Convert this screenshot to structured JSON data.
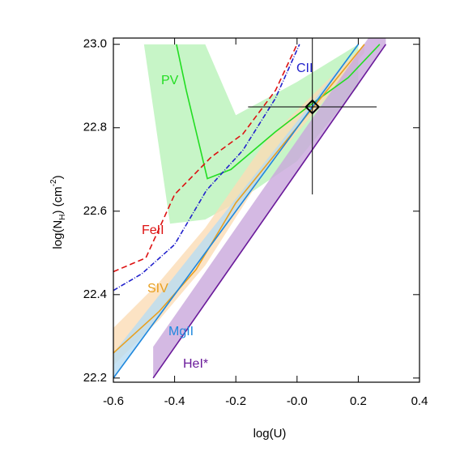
{
  "chart_data": {
    "type": "line",
    "x_label": "log(U)",
    "y_label": [
      "log(N",
      "H",
      ") (cm",
      "-2",
      ")"
    ],
    "xlim": [
      -0.6,
      0.4
    ],
    "ylim": [
      22.19,
      23.015
    ],
    "xticks": [
      -0.6,
      -0.4,
      -0.2,
      {
        "value": 0,
        "label": "-0.0"
      },
      0.2,
      0.4
    ],
    "yticks": [
      22.2,
      22.4,
      22.6,
      22.8,
      {
        "value": 23,
        "label": "23.0"
      }
    ],
    "series": [
      {
        "name": "PV",
        "color": "#22dd22",
        "x": [
          -0.394,
          -0.362,
          -0.293,
          -0.216,
          -0.071,
          0.035,
          0.167,
          0.27
        ],
        "values": [
          23.0,
          22.89,
          22.678,
          22.7,
          22.79,
          22.85,
          22.92,
          23.0
        ],
        "band": {
          "color": "#b9f2b9",
          "x": [
            -0.5,
            -0.415,
            -0.3,
            -0.2,
            0.0,
            0.2
          ],
          "low": [
            23.0,
            22.57,
            22.58,
            22.62,
            22.72,
            22.9
          ],
          "high": [
            23.0,
            23.0,
            23.0,
            22.83,
            22.91,
            23.0
          ]
        }
      },
      {
        "name": "CII",
        "color": "#2222cc",
        "dash": "6,2,1,2",
        "x": [
          -0.6,
          -0.507,
          -0.4,
          -0.296,
          -0.177,
          -0.071,
          0.008
        ],
        "values": [
          22.41,
          22.45,
          22.52,
          22.65,
          22.746,
          22.87,
          23.0
        ]
      },
      {
        "name": "FeII",
        "color": "#dd1111",
        "dash": "7,4",
        "x": [
          -0.6,
          -0.494,
          -0.4,
          -0.28,
          -0.177,
          -0.07,
          0.0
        ],
        "values": [
          22.455,
          22.488,
          22.64,
          22.73,
          22.785,
          22.89,
          23.0
        ]
      },
      {
        "name": "SIV",
        "color": "#e8a020",
        "x": [
          -0.6,
          -0.45,
          -0.33,
          -0.2,
          0.22
        ],
        "values": [
          22.26,
          22.36,
          22.46,
          22.62,
          23.0
        ],
        "band": {
          "color": "#fbdcb5",
          "x": [
            -0.6,
            -0.45,
            -0.3,
            -0.1,
            0.22
          ],
          "low": [
            22.23,
            22.34,
            22.47,
            22.7,
            22.98
          ],
          "high": [
            22.32,
            22.43,
            22.56,
            22.77,
            23.0
          ]
        }
      },
      {
        "name": "MgII",
        "color": "#1f88dd",
        "x": [
          -0.6,
          0.2
        ],
        "values": [
          22.2,
          23.0
        ],
        "band": {
          "color": "#b8dcf3",
          "x": [
            -0.6,
            0.2
          ],
          "low": [
            22.2,
            23.0
          ],
          "high": [
            22.26,
            23.0
          ]
        }
      },
      {
        "name": "HeI*",
        "color": "#6a1a9a",
        "x": [
          -0.47,
          0.29
        ],
        "values": [
          22.2,
          23.0
        ],
        "band": {
          "color": "#c9a8dc",
          "x": [
            -0.47,
            0.29
          ],
          "low": [
            22.2,
            23.0
          ],
          "high": [
            22.275,
            23.075
          ]
        }
      }
    ],
    "point": {
      "x": 0.05,
      "y": 22.85,
      "xerr": 0.21,
      "yerr": 0.21,
      "color": "#000000"
    }
  }
}
